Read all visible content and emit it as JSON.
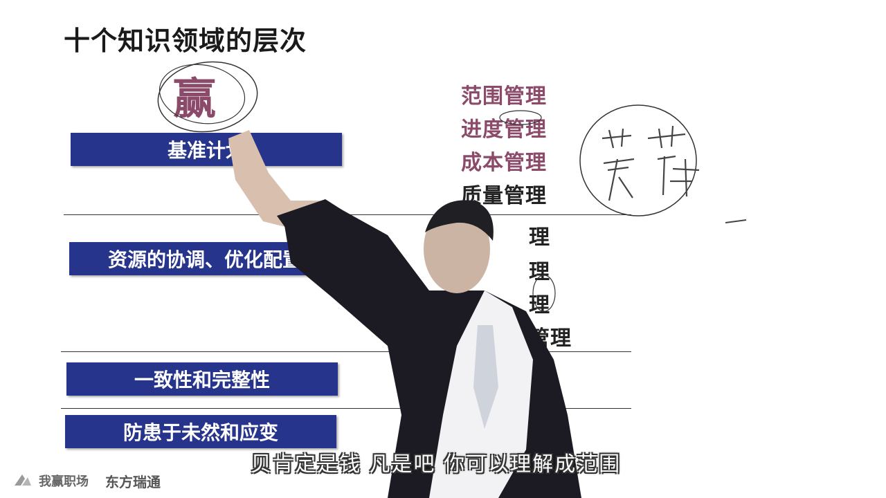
{
  "slide": {
    "title": "十个知识领域的层次",
    "handwritten_big": "赢",
    "handwritten_side": "莫 芷 辣"
  },
  "bars": [
    {
      "label": "基准计划"
    },
    {
      "label": "资源的协调、优化配置"
    },
    {
      "label": "一致性和完整性"
    },
    {
      "label": "防患于未然和应变"
    }
  ],
  "areas": [
    {
      "label": "范围管理"
    },
    {
      "label": "进度管理"
    },
    {
      "label": "成本管理"
    },
    {
      "label": "质量管理"
    },
    {
      "label": "理"
    },
    {
      "label": "理"
    },
    {
      "label": "理"
    },
    {
      "label": "管理"
    }
  ],
  "subtitle": "贝肯定是钱 凡是吧 你可以理解成范围",
  "branding": {
    "logo1": "我赢职场",
    "logo2": "东方瑞通"
  },
  "colors": {
    "bar": "#26348c",
    "accent_text": "#8b4a6a"
  }
}
